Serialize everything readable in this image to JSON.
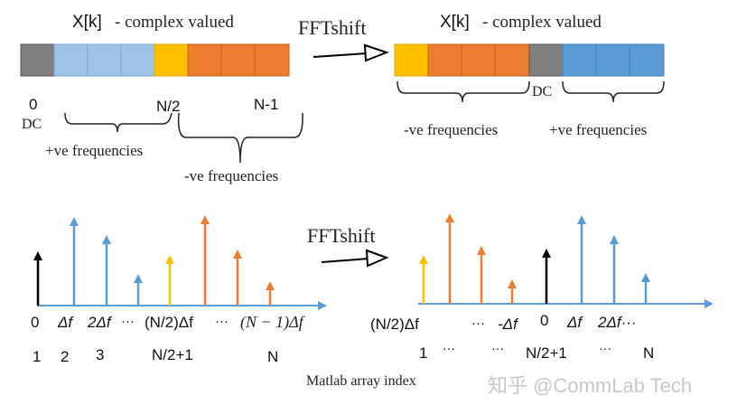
{
  "colors": {
    "dc": "#808080",
    "pos_light": "#9dc3e6",
    "pos": "#5b9bd5",
    "nyquist": "#ffc000",
    "neg": "#ed7d31",
    "black": "#000000",
    "watermark": "#c8c8c8"
  },
  "top": {
    "left_title_symbol": "X[k]",
    "left_title_text": " - complex valued",
    "right_title_symbol": "X[k]",
    "right_title_text": " - complex valued",
    "shift_label": "FFTshift",
    "left_labels": {
      "zero": "0",
      "dc": "DC",
      "half": "N/2",
      "last": "N-1",
      "pos_freq": "+ve frequencies",
      "neg_freq": "-ve frequencies"
    },
    "right_labels": {
      "dc": "DC",
      "neg_freq": "-ve frequencies",
      "pos_freq": "+ve frequencies"
    }
  },
  "bottom": {
    "shift_label": "FFTshift",
    "left_freq_labels": [
      "0",
      "Δf",
      "2Δf",
      "···",
      "(N/2)Δf",
      "···",
      "(N − 1)Δf"
    ],
    "left_index_labels": [
      "1",
      "2",
      "3",
      "N/2+1",
      "N"
    ],
    "right_freq_labels": [
      "(N/2)Δf",
      "···",
      "-Δf",
      "0",
      "Δf",
      "2Δf···"
    ],
    "right_index_labels": [
      "1",
      "···",
      "···",
      "N/2+1",
      "···",
      "N"
    ],
    "index_caption": "Matlab array index",
    "watermark": "知乎 @CommLab Tech"
  }
}
